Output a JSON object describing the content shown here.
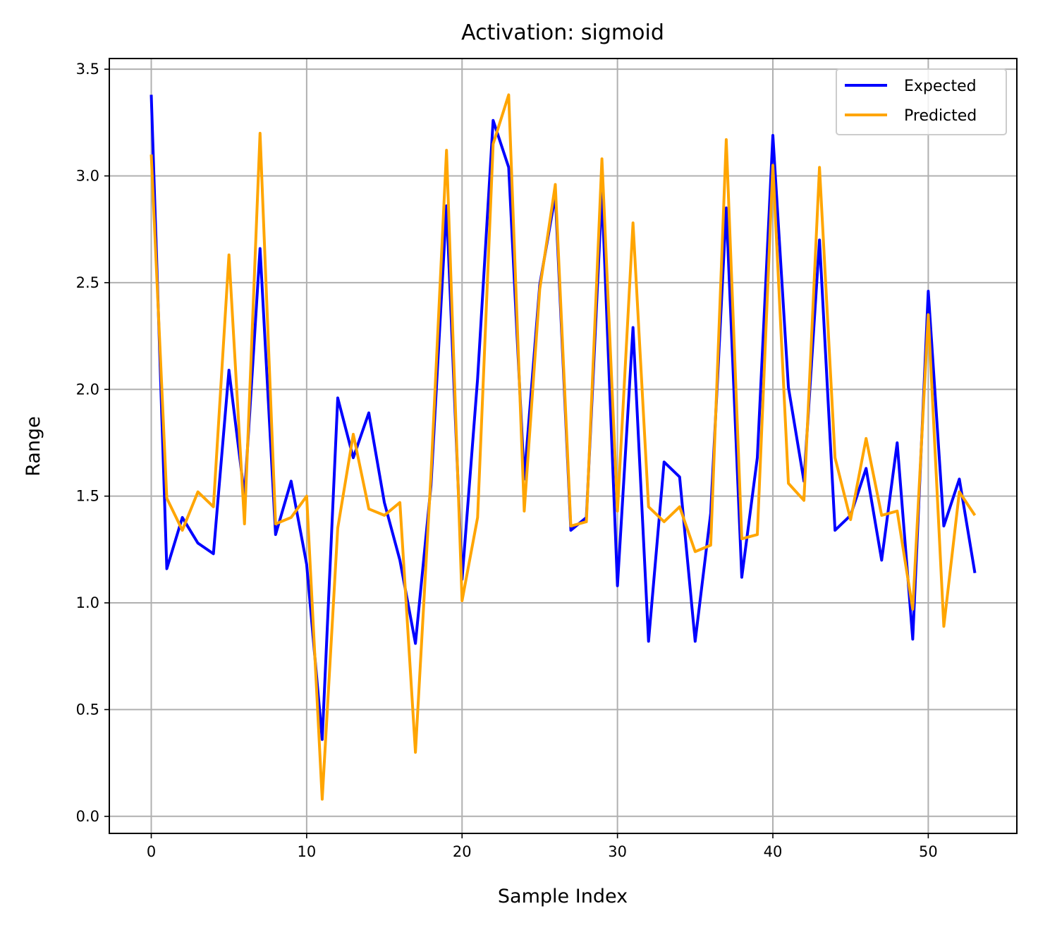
{
  "chart_data": {
    "type": "line",
    "title": "Activation: sigmoid",
    "xlabel": "Sample Index",
    "ylabel": "Range",
    "xlim": [
      -2.7,
      55.7
    ],
    "ylim": [
      -0.08,
      3.55
    ],
    "xticks": [
      0,
      10,
      20,
      30,
      40,
      50
    ],
    "xtick_labels": [
      "0",
      "10",
      "20",
      "30",
      "40",
      "50"
    ],
    "yticks": [
      0.0,
      0.5,
      1.0,
      1.5,
      2.0,
      2.5,
      3.0,
      3.5
    ],
    "ytick_labels": [
      "0.0",
      "0.5",
      "1.0",
      "1.5",
      "2.0",
      "2.5",
      "3.0",
      "3.5"
    ],
    "grid": true,
    "legend_position": "upper right",
    "x": [
      0,
      1,
      2,
      3,
      4,
      5,
      6,
      7,
      8,
      9,
      10,
      11,
      12,
      13,
      14,
      15,
      16,
      17,
      18,
      19,
      20,
      21,
      22,
      23,
      24,
      25,
      26,
      27,
      28,
      29,
      30,
      31,
      32,
      33,
      34,
      35,
      36,
      37,
      38,
      39,
      40,
      41,
      42,
      43,
      44,
      45,
      46,
      47,
      48,
      49,
      50,
      51,
      52,
      53
    ],
    "series": [
      {
        "name": "Expected",
        "color": "#0000ff",
        "values": [
          3.38,
          1.16,
          1.4,
          1.28,
          1.23,
          2.09,
          1.5,
          2.66,
          1.32,
          1.57,
          1.18,
          0.36,
          1.96,
          1.68,
          1.89,
          1.47,
          1.2,
          0.81,
          1.55,
          2.86,
          1.11,
          2.05,
          3.26,
          3.04,
          1.58,
          2.49,
          2.91,
          1.34,
          1.4,
          2.92,
          1.08,
          2.29,
          0.82,
          1.66,
          1.59,
          0.82,
          1.42,
          2.85,
          1.12,
          1.68,
          3.19,
          2.01,
          1.57,
          2.7,
          1.34,
          1.41,
          1.63,
          1.2,
          1.75,
          0.83,
          2.46,
          1.36,
          1.58,
          1.14
        ]
      },
      {
        "name": "Predicted",
        "color": "#ffa500",
        "values": [
          3.1,
          1.49,
          1.34,
          1.52,
          1.45,
          2.63,
          1.37,
          3.2,
          1.37,
          1.4,
          1.5,
          0.08,
          1.35,
          1.79,
          1.44,
          1.41,
          1.47,
          0.3,
          1.6,
          3.12,
          1.01,
          1.4,
          3.15,
          3.38,
          1.43,
          2.47,
          2.96,
          1.36,
          1.38,
          3.08,
          1.43,
          2.78,
          1.45,
          1.38,
          1.45,
          1.24,
          1.27,
          3.17,
          1.3,
          1.32,
          3.05,
          1.56,
          1.48,
          3.04,
          1.68,
          1.39,
          1.77,
          1.41,
          1.43,
          0.97,
          2.35,
          0.89,
          1.52,
          1.41
        ]
      }
    ]
  }
}
